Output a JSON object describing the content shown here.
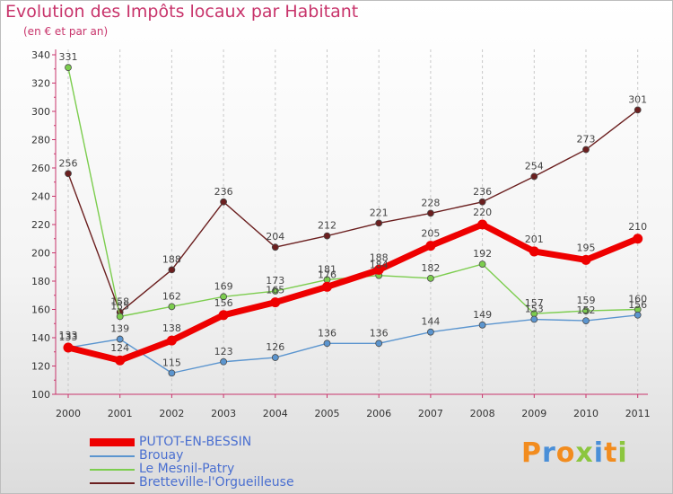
{
  "header": {
    "title": "Evolution des Impôts locaux par Habitant",
    "subtitle": "(en € et par an)"
  },
  "colors": {
    "title": "#c8346b",
    "axis": "#c8346b",
    "legend_text": "#4a6fd0",
    "background": "#f2f2f2"
  },
  "logo": {
    "text": "Proxiti",
    "letters": [
      "P",
      "r",
      "o",
      "x",
      "i",
      "t",
      "i"
    ],
    "colors": [
      "#f28c1e",
      "#4a8fd8",
      "#f28c1e",
      "#8cc63f",
      "#4a8fd8",
      "#f28c1e",
      "#8cc63f"
    ]
  },
  "chart_data": {
    "type": "line",
    "title": "Evolution des Impôts locaux par Habitant",
    "subtitle": "(en € et par an)",
    "xlabel": "",
    "ylabel": "",
    "categories": [
      "2000",
      "2001",
      "2002",
      "2003",
      "2004",
      "2005",
      "2006",
      "2007",
      "2008",
      "2009",
      "2010",
      "2011"
    ],
    "ylim": [
      100,
      340
    ],
    "yticks": [
      100,
      120,
      140,
      160,
      180,
      200,
      220,
      240,
      260,
      280,
      300,
      320,
      340
    ],
    "legend_position": "bottom-left",
    "series": [
      {
        "name": "PUTOT-EN-BESSIN",
        "color": "#ee0000",
        "line_width": 7,
        "marker_radius": 5.5,
        "values": [
          133,
          124,
          138,
          156,
          165,
          176,
          188,
          205,
          220,
          201,
          195,
          210
        ],
        "labels": [
          "133",
          "124",
          "138",
          "156",
          "165",
          "176",
          "188",
          "205",
          "220",
          "201",
          "195",
          "210"
        ]
      },
      {
        "name": "Brouay",
        "color": "#5b95cf",
        "line_width": 1.4,
        "marker_radius": 3.5,
        "values": [
          133,
          139,
          115,
          123,
          126,
          136,
          136,
          144,
          149,
          153,
          152,
          156
        ],
        "labels": [
          "133",
          "139",
          "115",
          "123",
          "126",
          "136",
          "136",
          "144",
          "149",
          "153",
          "152",
          "156"
        ]
      },
      {
        "name": "Le Mesnil-Patry",
        "color": "#7ccd4e",
        "line_width": 1.4,
        "marker_radius": 3.5,
        "values": [
          331,
          155,
          162,
          169,
          173,
          181,
          184,
          182,
          192,
          157,
          159,
          160
        ],
        "labels": [
          "331",
          "155",
          "162",
          "169",
          "173",
          "181",
          "184",
          "182",
          "192",
          "157",
          "159",
          "160"
        ]
      },
      {
        "name": "Bretteville-l'Orgueilleuse",
        "color": "#6b1f1f",
        "line_width": 1.4,
        "marker_radius": 3.5,
        "values": [
          256,
          158,
          188,
          236,
          204,
          212,
          221,
          228,
          236,
          254,
          273,
          301
        ],
        "labels": [
          "256",
          "158",
          "188",
          "236",
          "204",
          "212",
          "221",
          "228",
          "236",
          "254",
          "273",
          "301"
        ]
      }
    ]
  }
}
